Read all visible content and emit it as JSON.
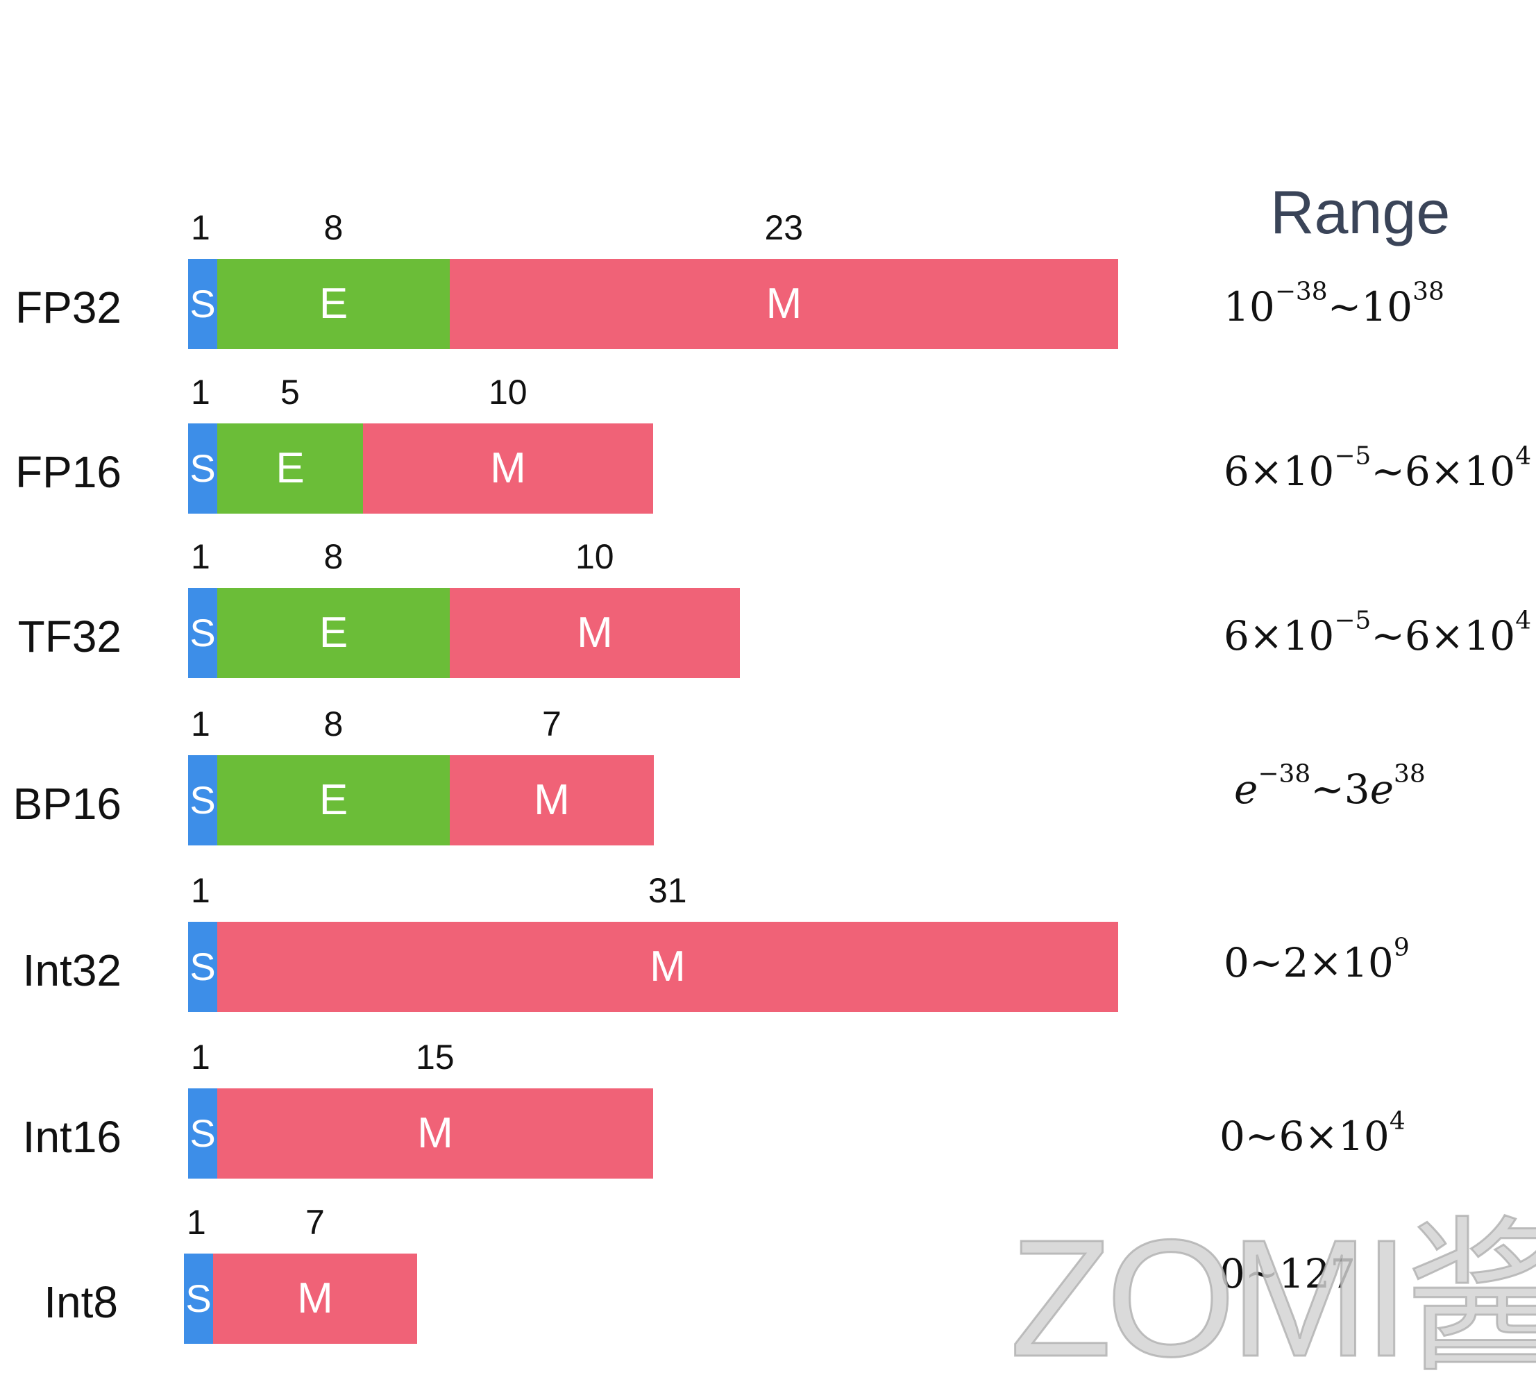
{
  "range_header": "Range",
  "watermark": "ZOMI酱",
  "colors": {
    "sign": "#3d8ee8",
    "exponent": "#6bbd38",
    "mantissa": "#f06277"
  },
  "formats": [
    {
      "name": "FP32",
      "segments": [
        {
          "kind": "sign",
          "label": "S",
          "bits": "1"
        },
        {
          "kind": "exponent",
          "label": "E",
          "bits": "8"
        },
        {
          "kind": "mantissa",
          "label": "M",
          "bits": "23"
        }
      ],
      "range_html": "10<sup>−38</sup>~10<sup>38</sup>"
    },
    {
      "name": "FP16",
      "segments": [
        {
          "kind": "sign",
          "label": "S",
          "bits": "1"
        },
        {
          "kind": "exponent",
          "label": "E",
          "bits": "5"
        },
        {
          "kind": "mantissa",
          "label": "M",
          "bits": "10"
        }
      ],
      "range_html": "6×10<sup>−5</sup>~6×10<sup>4</sup>"
    },
    {
      "name": "TF32",
      "segments": [
        {
          "kind": "sign",
          "label": "S",
          "bits": "1"
        },
        {
          "kind": "exponent",
          "label": "E",
          "bits": "8"
        },
        {
          "kind": "mantissa",
          "label": "M",
          "bits": "10"
        }
      ],
      "range_html": "6×10<sup>−5</sup>~6×10<sup>4</sup>"
    },
    {
      "name": "BP16",
      "segments": [
        {
          "kind": "sign",
          "label": "S",
          "bits": "1"
        },
        {
          "kind": "exponent",
          "label": "E",
          "bits": "8"
        },
        {
          "kind": "mantissa",
          "label": "M",
          "bits": "7"
        }
      ],
      "range_html": "<i>e</i><sup>−38</sup>~3<i>e</i><sup>38</sup>"
    },
    {
      "name": "Int32",
      "segments": [
        {
          "kind": "sign",
          "label": "S",
          "bits": "1"
        },
        {
          "kind": "mantissa",
          "label": "M",
          "bits": "31"
        }
      ],
      "range_html": "0~2×10<sup>9</sup>"
    },
    {
      "name": "Int16",
      "segments": [
        {
          "kind": "sign",
          "label": "S",
          "bits": "1"
        },
        {
          "kind": "mantissa",
          "label": "M",
          "bits": "15"
        }
      ],
      "range_html": "0~6×10<sup>4</sup>"
    },
    {
      "name": "Int8",
      "segments": [
        {
          "kind": "sign",
          "label": "S",
          "bits": "1"
        },
        {
          "kind": "mantissa",
          "label": "M",
          "bits": "7"
        }
      ],
      "range_html": "0~127"
    }
  ]
}
